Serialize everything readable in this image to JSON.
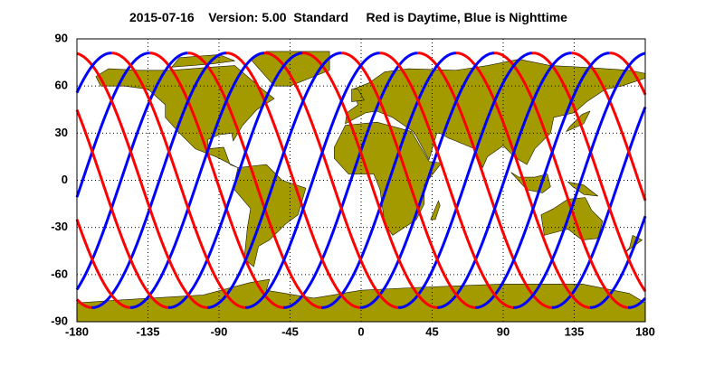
{
  "chart_data": {
    "type": "map",
    "title": "2015-07-16    Version: 5.00  Standard     Red is Daytime, Blue is Nighttime",
    "xlim": [
      -180,
      180
    ],
    "ylim": [
      -90,
      90
    ],
    "xticks": [
      -180,
      -135,
      -90,
      -45,
      0,
      45,
      90,
      135,
      180
    ],
    "yticks": [
      -90,
      -60,
      -30,
      0,
      30,
      60,
      90
    ],
    "grid": true,
    "day_color": "#ff0000",
    "night_color": "#0000ff",
    "land_color": "#a39a00"
  }
}
